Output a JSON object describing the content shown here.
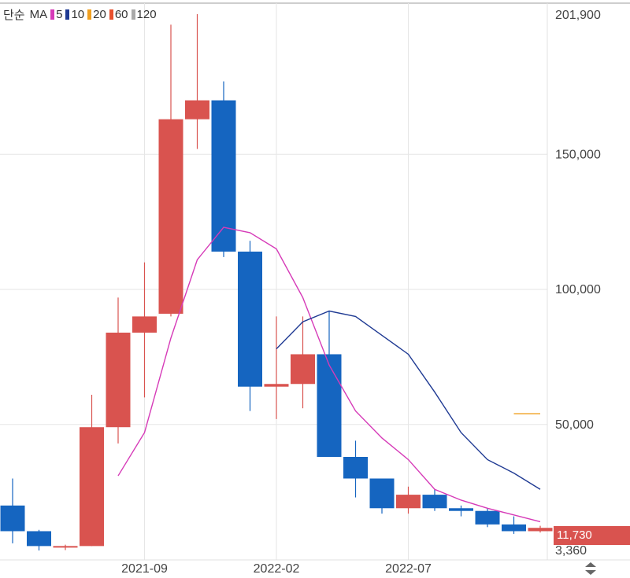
{
  "legend": {
    "mode": "단순",
    "label": "MA",
    "items": [
      {
        "period": "5",
        "color": "#d63bb8"
      },
      {
        "period": "10",
        "color": "#1f3a93"
      },
      {
        "period": "20",
        "color": "#f0a020"
      },
      {
        "period": "60",
        "color": "#e8502e"
      },
      {
        "period": "120",
        "color": "#aaaaaa"
      }
    ]
  },
  "current_price": "11,730",
  "colors": {
    "up": "#d9534f",
    "down": "#1565c0",
    "ma5": "#d63bb8",
    "ma10": "#1f3a93",
    "ma20": "#f0a020",
    "grid": "#e6e6e6",
    "axis_text": "#444444"
  },
  "chart_data": {
    "type": "candlestick",
    "interval": "monthly",
    "y_axis_labels": [
      "201,900",
      "150,000",
      "100,000",
      "50,000",
      "3,360"
    ],
    "x_axis_labels": [
      {
        "label": "2021-09",
        "index": 5
      },
      {
        "label": "2022-02",
        "index": 10
      },
      {
        "label": "2022-07",
        "index": 15
      }
    ],
    "ylim": [
      3360,
      201900
    ],
    "candles": [
      {
        "open": 20000,
        "close": 10500,
        "high": 30000,
        "low": 6000
      },
      {
        "open": 10500,
        "close": 5000,
        "high": 11000,
        "low": 3360
      },
      {
        "open": 4500,
        "close": 5000,
        "high": 5500,
        "low": 3500
      },
      {
        "open": 5000,
        "close": 49000,
        "high": 61000,
        "low": 5000
      },
      {
        "open": 49000,
        "close": 84000,
        "high": 97000,
        "low": 43000
      },
      {
        "open": 84000,
        "close": 90000,
        "high": 110000,
        "low": 60000
      },
      {
        "open": 91000,
        "close": 163000,
        "high": 198000,
        "low": 90000
      },
      {
        "open": 163000,
        "close": 170000,
        "high": 201900,
        "low": 152000
      },
      {
        "open": 170000,
        "close": 114000,
        "high": 177000,
        "low": 112000
      },
      {
        "open": 114000,
        "close": 64000,
        "high": 118000,
        "low": 55000
      },
      {
        "open": 64000,
        "close": 65000,
        "high": 90000,
        "low": 52000
      },
      {
        "open": 65000,
        "close": 76000,
        "high": 90000,
        "low": 56000
      },
      {
        "open": 76000,
        "close": 38000,
        "high": 92000,
        "low": 38000
      },
      {
        "open": 38000,
        "close": 30000,
        "high": 44000,
        "low": 23000
      },
      {
        "open": 30000,
        "close": 19000,
        "high": 30000,
        "low": 17000
      },
      {
        "open": 19000,
        "close": 24000,
        "high": 27000,
        "low": 17000
      },
      {
        "open": 24000,
        "close": 19000,
        "high": 26000,
        "low": 18000
      },
      {
        "open": 19000,
        "close": 18000,
        "high": 20000,
        "low": 16000
      },
      {
        "open": 18000,
        "close": 13000,
        "high": 19000,
        "low": 12000
      },
      {
        "open": 13000,
        "close": 10500,
        "high": 16000,
        "low": 9500
      },
      {
        "open": 10500,
        "close": 11730,
        "high": 12500,
        "low": 10000
      }
    ],
    "ma5": [
      null,
      null,
      null,
      null,
      31000,
      47000,
      82000,
      111000,
      123000,
      121000,
      115000,
      97000,
      72000,
      55000,
      45000,
      37000,
      26000,
      22000,
      19000,
      16500,
      14000
    ],
    "ma10": [
      null,
      null,
      null,
      null,
      null,
      null,
      null,
      null,
      null,
      null,
      78000,
      88000,
      92000,
      90000,
      83000,
      76000,
      62000,
      47000,
      37000,
      32000,
      26000
    ],
    "ma20": [
      null,
      null,
      null,
      null,
      null,
      null,
      null,
      null,
      null,
      null,
      null,
      null,
      null,
      null,
      null,
      null,
      null,
      null,
      null,
      54000,
      54000
    ]
  }
}
